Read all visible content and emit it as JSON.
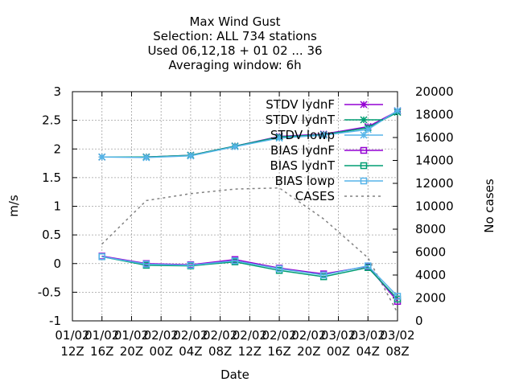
{
  "chart_data": {
    "type": "line",
    "title": [
      "Max Wind Gust",
      "Selection: ALL    734 stations",
      "Used  06,12,18  + 01 02 ... 36",
      "Averaging window:  6h"
    ],
    "xlabel": "Date",
    "ylabel": "m/s",
    "y2label": "No cases",
    "x_ticks": [
      {
        "x": 0,
        "line1": "01/02",
        "line2": "12Z"
      },
      {
        "x": 4,
        "line1": "01/02",
        "line2": "16Z"
      },
      {
        "x": 8,
        "line1": "01/02",
        "line2": "20Z"
      },
      {
        "x": 12,
        "line1": "02/02",
        "line2": "00Z"
      },
      {
        "x": 16,
        "line1": "02/02",
        "line2": "04Z"
      },
      {
        "x": 20,
        "line1": "02/02",
        "line2": "08Z"
      },
      {
        "x": 24,
        "line1": "02/02",
        "line2": "12Z"
      },
      {
        "x": 28,
        "line1": "02/02",
        "line2": "16Z"
      },
      {
        "x": 32,
        "line1": "02/02",
        "line2": "20Z"
      },
      {
        "x": 36,
        "line1": "03/02",
        "line2": "00Z"
      },
      {
        "x": 40,
        "line1": "03/02",
        "line2": "04Z"
      },
      {
        "x": 44,
        "line1": "03/02",
        "line2": "08Z"
      }
    ],
    "y_ticks": [
      "-1",
      "-0.5",
      "0",
      "0.5",
      "1",
      "1.5",
      "2",
      "2.5",
      "3"
    ],
    "y2_ticks": [
      "0",
      "2000",
      "4000",
      "6000",
      "8000",
      "10000",
      "12000",
      "14000",
      "16000",
      "18000",
      "20000"
    ],
    "xlim": [
      0,
      44
    ],
    "ylim": [
      -1,
      3
    ],
    "y2lim": [
      0,
      20000
    ],
    "grid": true,
    "legend_position": "top-right",
    "series": [
      {
        "name": "STDV lydnF",
        "color": "#9400d3",
        "marker": "x-star",
        "dash": false,
        "axis": "y",
        "x": [
          4,
          10,
          16,
          22,
          28,
          34,
          40,
          44
        ],
        "y": [
          1.86,
          1.86,
          1.89,
          2.05,
          2.22,
          2.26,
          2.39,
          2.66
        ]
      },
      {
        "name": "STDV lydnT",
        "color": "#009e73",
        "marker": "x-star",
        "dash": false,
        "axis": "y",
        "x": [
          4,
          10,
          16,
          22,
          28,
          34,
          40,
          44
        ],
        "y": [
          1.86,
          1.86,
          1.89,
          2.05,
          2.21,
          2.25,
          2.37,
          2.64
        ]
      },
      {
        "name": "STDV lowp",
        "color": "#56b4e9",
        "marker": "x-star",
        "dash": false,
        "axis": "y",
        "x": [
          4,
          10,
          16,
          22,
          28,
          34,
          40,
          44
        ],
        "y": [
          1.86,
          1.85,
          1.88,
          2.04,
          2.19,
          2.24,
          2.34,
          2.67
        ]
      },
      {
        "name": "BIAS lydnF",
        "color": "#9400d3",
        "marker": "square",
        "dash": false,
        "axis": "y",
        "x": [
          4,
          10,
          16,
          22,
          28,
          34,
          40,
          44
        ],
        "y": [
          0.13,
          0.0,
          -0.02,
          0.07,
          -0.08,
          -0.18,
          -0.05,
          -0.66
        ]
      },
      {
        "name": "BIAS lydnT",
        "color": "#009e73",
        "marker": "square",
        "dash": false,
        "axis": "y",
        "x": [
          4,
          10,
          16,
          22,
          28,
          34,
          40,
          44
        ],
        "y": [
          0.12,
          -0.03,
          -0.04,
          0.03,
          -0.12,
          -0.23,
          -0.07,
          -0.62
        ]
      },
      {
        "name": "BIAS lowp",
        "color": "#56b4e9",
        "marker": "square",
        "dash": false,
        "axis": "y",
        "x": [
          4,
          10,
          16,
          22,
          28,
          34,
          40,
          44
        ],
        "y": [
          0.12,
          -0.01,
          -0.03,
          0.05,
          -0.09,
          -0.2,
          -0.04,
          -0.57
        ]
      },
      {
        "name": "CASES",
        "color": "#808080",
        "marker": "none",
        "dash": true,
        "axis": "y2",
        "x": [
          4,
          10,
          16,
          22,
          28,
          34,
          40,
          44
        ],
        "y": [
          6700,
          10500,
          11100,
          11500,
          11600,
          8900,
          5500,
          700
        ]
      }
    ]
  }
}
